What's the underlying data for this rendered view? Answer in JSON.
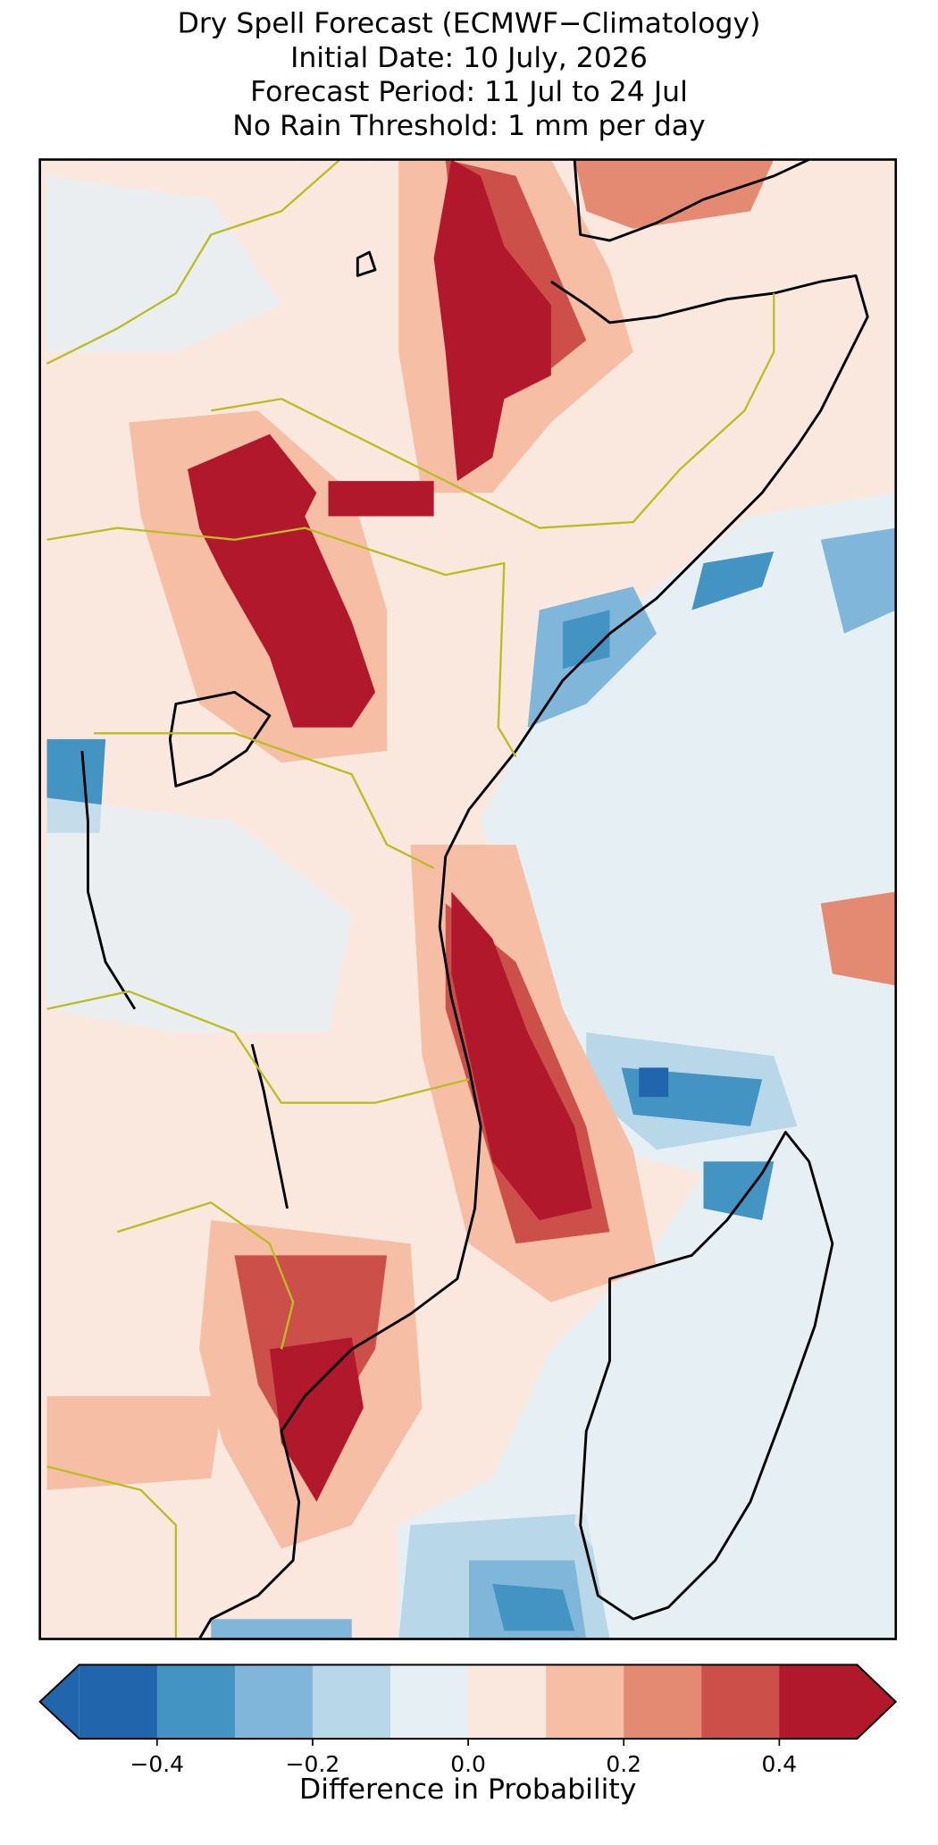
{
  "title": [
    "Dry Spell Forecast (ECMWF−Climatology)",
    "Initial Date: 10 July, 2026",
    "Forecast Period: 11 Jul to 24 Jul",
    "No Rain Threshold: 1 mm per day"
  ],
  "colorbar": {
    "label": "Difference in Probability",
    "boundaries": [
      -0.5,
      -0.4,
      -0.3,
      -0.2,
      -0.1,
      0,
      0.1,
      0.2,
      0.3,
      0.4,
      0.5
    ],
    "colors": [
      "#2166ac",
      "#4393c3",
      "#7fb6d9",
      "#b8d7e9",
      "#e6eff4",
      "#fae8de",
      "#f6bea5",
      "#e58a72",
      "#cd4f4a",
      "#b2182b"
    ],
    "extend": "both",
    "ticks": [
      {
        "value": -0.4,
        "label": "−0.4"
      },
      {
        "value": -0.2,
        "label": "−0.2"
      },
      {
        "value": 0,
        "label": "0.0"
      },
      0.2,
      0.4
    ]
  }
}
